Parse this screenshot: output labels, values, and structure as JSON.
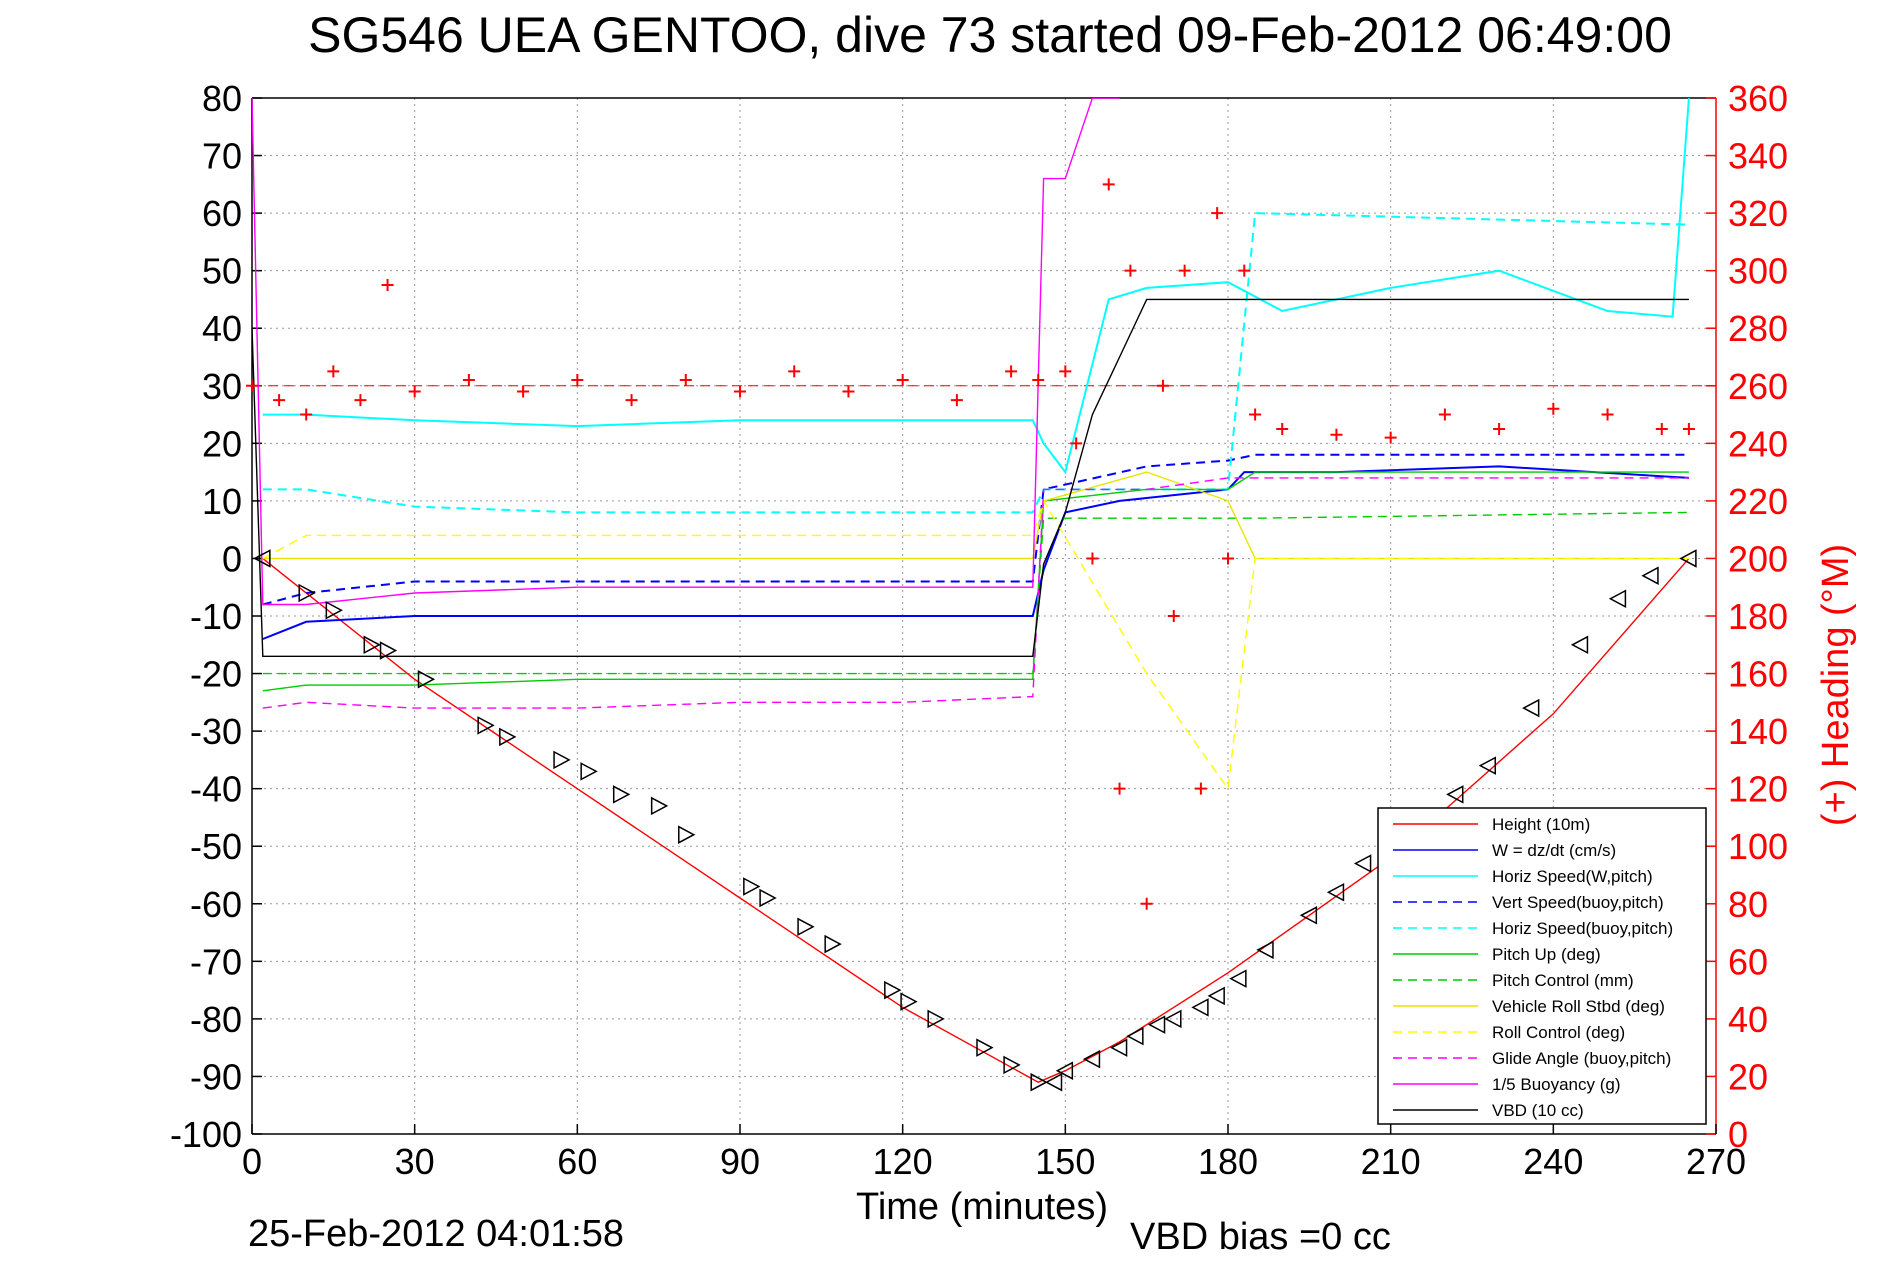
{
  "chart_data": {
    "type": "line",
    "title": "SG546 UEA GENTOO, dive 73 started 09-Feb-2012 06:49:00",
    "xlabel": "Time (minutes)",
    "ylabel": "",
    "y2label": "(+) Heading (°M)",
    "xlim": [
      0,
      270
    ],
    "ylim": [
      -100,
      80
    ],
    "y2lim": [
      0,
      360
    ],
    "xticks": [
      "0",
      "30",
      "60",
      "90",
      "120",
      "150",
      "180",
      "210",
      "240",
      "270"
    ],
    "yticks": [
      "80",
      "70",
      "60",
      "50",
      "40",
      "30",
      "20",
      "10",
      "0",
      "-10",
      "-20",
      "-30",
      "-40",
      "-50",
      "-60",
      "-70",
      "-80",
      "-90",
      "-100"
    ],
    "y2ticks": [
      "360",
      "340",
      "320",
      "300",
      "280",
      "260",
      "240",
      "220",
      "200",
      "180",
      "160",
      "140",
      "120",
      "100",
      "80",
      "60",
      "40",
      "20",
      "0"
    ],
    "grid": true,
    "legend_position": "bottom-right",
    "footer_left": "25-Feb-2012 04:01:58",
    "footer_right": "VBD bias =0 cc",
    "heading_ref_y2": 260,
    "series": [
      {
        "name": "Height (10m)",
        "color": "#ff0000",
        "style": "solid",
        "x": [
          2,
          30,
          60,
          90,
          120,
          145,
          150,
          160,
          180,
          210,
          240,
          265
        ],
        "y": [
          0,
          -21,
          -40,
          -59,
          -78,
          -91,
          -89,
          -84,
          -72,
          -52,
          -27,
          0
        ]
      },
      {
        "name": "W = dz/dt (cm/s)",
        "color": "#0000ff",
        "style": "solid",
        "x": [
          2,
          10,
          30,
          60,
          90,
          120,
          144,
          146,
          150,
          160,
          180,
          183,
          200,
          230,
          265
        ],
        "y": [
          -14,
          -11,
          -10,
          -10,
          -10,
          -10,
          -10,
          -2,
          8,
          10,
          12,
          15,
          15,
          16,
          14
        ]
      },
      {
        "name": "Horiz Speed(W,pitch)",
        "color": "#00ffff",
        "style": "solid",
        "x": [
          2,
          10,
          30,
          60,
          90,
          120,
          144,
          146,
          150,
          158,
          165,
          180,
          190,
          210,
          230,
          250,
          262,
          265
        ],
        "y": [
          25,
          25,
          24,
          23,
          24,
          24,
          24,
          20,
          15,
          45,
          47,
          48,
          43,
          47,
          50,
          43,
          42,
          80
        ]
      },
      {
        "name": "Vert Speed(buoy,pitch)",
        "color": "#0000ff",
        "style": "dashed",
        "x": [
          2,
          10,
          30,
          60,
          90,
          120,
          144,
          146,
          165,
          180,
          185,
          265
        ],
        "y": [
          -8,
          -6,
          -4,
          -4,
          -4,
          -4,
          -4,
          12,
          16,
          17,
          18,
          18
        ]
      },
      {
        "name": "Horiz Speed(buoy,pitch)",
        "color": "#00ffff",
        "style": "dashed",
        "x": [
          2,
          10,
          30,
          60,
          90,
          120,
          144,
          146,
          165,
          180,
          185,
          265
        ],
        "y": [
          12,
          12,
          9,
          8,
          8,
          8,
          8,
          12,
          12,
          12,
          60,
          58
        ]
      },
      {
        "name": "Pitch Up (deg)",
        "color": "#00cc00",
        "style": "solid",
        "x": [
          2,
          10,
          30,
          60,
          90,
          120,
          144,
          146,
          165,
          180,
          185,
          265
        ],
        "y": [
          -23,
          -22,
          -22,
          -21,
          -21,
          -21,
          -21,
          10,
          12,
          12,
          15,
          15
        ]
      },
      {
        "name": "Pitch Control (mm)",
        "color": "#00cc00",
        "style": "dashed",
        "x": [
          2,
          10,
          30,
          60,
          90,
          120,
          144,
          146,
          165,
          180,
          185,
          265
        ],
        "y": [
          -20,
          -20,
          -20,
          -20,
          -20,
          -20,
          -20,
          7,
          7,
          7,
          7,
          8
        ]
      },
      {
        "name": "Vehicle Roll Stbd (deg)",
        "color": "#e6e600",
        "style": "solid",
        "x": [
          2,
          10,
          30,
          60,
          90,
          120,
          144,
          146,
          165,
          180,
          185,
          265
        ],
        "y": [
          0,
          0,
          0,
          0,
          0,
          0,
          0,
          10,
          15,
          10,
          0,
          0
        ]
      },
      {
        "name": "Roll Control (deg)",
        "color": "#ffff00",
        "style": "dashed",
        "x": [
          2,
          10,
          30,
          60,
          90,
          120,
          144,
          146,
          165,
          180,
          185,
          265
        ],
        "y": [
          0,
          4,
          4,
          4,
          4,
          4,
          4,
          10,
          -20,
          -40,
          0,
          0
        ]
      },
      {
        "name": "Glide Angle (buoy,pitch)",
        "color": "#ff00ff",
        "style": "dashed",
        "x": [
          2,
          10,
          30,
          60,
          90,
          120,
          144,
          146,
          165,
          180,
          185,
          265
        ],
        "y": [
          -26,
          -25,
          -26,
          -26,
          -25,
          -25,
          -24,
          12,
          12,
          14,
          14,
          14
        ]
      },
      {
        "name": "1/5 Buoyancy (g)",
        "color": "#ff00ff",
        "style": "solid",
        "x": [
          0,
          2,
          10,
          30,
          60,
          90,
          120,
          144,
          146,
          150,
          155,
          160
        ],
        "y": [
          80,
          -8,
          -8,
          -6,
          -5,
          -5,
          -5,
          -5,
          66,
          66,
          80,
          80
        ]
      },
      {
        "name": "VBD (10 cc)",
        "color": "#000000",
        "style": "solid",
        "x": [
          0,
          2,
          10,
          60,
          120,
          144,
          146,
          150,
          155,
          160,
          165,
          180,
          230,
          265
        ],
        "y": [
          40,
          -17,
          -17,
          -17,
          -17,
          -17,
          -1,
          8,
          25,
          35,
          45,
          45,
          45,
          45
        ]
      }
    ],
    "heading_series": {
      "marker": "+",
      "color": "#ff0000",
      "x": [
        0,
        5,
        10,
        15,
        20,
        25,
        30,
        40,
        50,
        60,
        70,
        80,
        90,
        100,
        110,
        120,
        130,
        140,
        145,
        150,
        152,
        155,
        158,
        160,
        162,
        165,
        168,
        170,
        172,
        175,
        178,
        180,
        183,
        185,
        190,
        200,
        210,
        220,
        230,
        240,
        250,
        260,
        265
      ],
      "y": [
        260,
        255,
        250,
        265,
        255,
        295,
        258,
        262,
        258,
        262,
        255,
        262,
        258,
        265,
        258,
        262,
        255,
        265,
        262,
        265,
        240,
        200,
        330,
        120,
        300,
        80,
        260,
        180,
        300,
        120,
        320,
        200,
        300,
        250,
        245,
        243,
        242,
        250,
        245,
        252,
        250,
        245,
        245
      ]
    },
    "depth_markers": {
      "color": "#000000",
      "x": [
        2,
        10,
        15,
        22,
        25,
        32,
        43,
        47,
        57,
        62,
        68,
        75,
        80,
        92,
        95,
        102,
        107,
        118,
        121,
        126,
        135,
        140,
        145,
        148,
        150,
        155,
        160,
        163,
        167,
        170,
        175,
        178,
        182,
        187,
        195,
        200,
        205,
        215,
        222,
        228,
        236,
        245,
        252,
        258,
        265
      ],
      "y": [
        0,
        -6,
        -9,
        -15,
        -16,
        -21,
        -29,
        -31,
        -35,
        -37,
        -41,
        -43,
        -48,
        -57,
        -59,
        -64,
        -67,
        -75,
        -77,
        -80,
        -85,
        -88,
        -91,
        -91,
        -89,
        -87,
        -85,
        -83,
        -81,
        -80,
        -78,
        -76,
        -73,
        -68,
        -62,
        -58,
        -53,
        -46,
        -41,
        -36,
        -26,
        -15,
        -7,
        -3,
        0
      ]
    }
  }
}
